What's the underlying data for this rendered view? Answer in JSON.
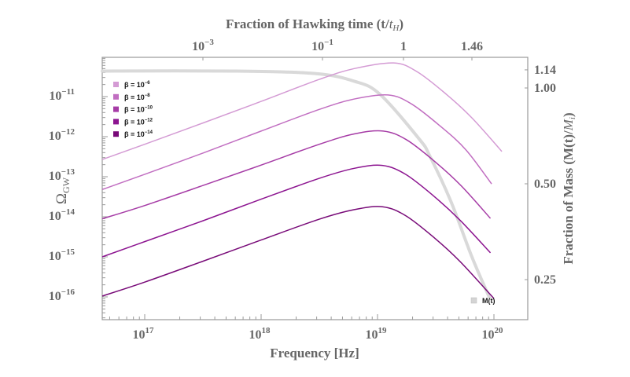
{
  "chart_data": {
    "type": "line",
    "xlabel": "Frequency [Hz]",
    "ylabel": "Ω_GW",
    "ylabel_main": "Ω",
    "ylabel_sub": "GW",
    "top_xlabel": "Fraction of Hawking time (t/t_H)",
    "top_xlabel_main": "Fraction of Hawking time (t/",
    "top_xlabel_italic": "t",
    "top_xlabel_sub": "H",
    "top_xlabel_close": ")",
    "right_ylabel": "Fraction of Mass (M(t)/M_i)",
    "right_ylabel_main": "Fraction of Mass (M(t)/",
    "right_ylabel_italic": "M",
    "right_ylabel_sub": "i",
    "right_ylabel_close": ")",
    "x_scale": "log",
    "y_scale": "log",
    "right_y_scale": "log",
    "xlim": [
      4.32e+16,
      1.95e+20
    ],
    "ylim": [
      2.7e-17,
      9.5e-11
    ],
    "right_ylim": [
      0.18,
      1.24
    ],
    "grid": false,
    "legend_placement": "top-left",
    "x_ticks": [
      {
        "label": "10",
        "exp": "17",
        "value": 1e+17
      },
      {
        "label": "10",
        "exp": "18",
        "value": 1e+18
      },
      {
        "label": "10",
        "exp": "19",
        "value": 1e+19
      },
      {
        "label": "10",
        "exp": "20",
        "value": 1e+20
      }
    ],
    "y_ticks": [
      {
        "label": "10",
        "exp": "−11",
        "value": 1e-11
      },
      {
        "label": "10",
        "exp": "−12",
        "value": 1e-12
      },
      {
        "label": "10",
        "exp": "−13",
        "value": 1e-13
      },
      {
        "label": "10",
        "exp": "−14",
        "value": 1e-14
      },
      {
        "label": "10",
        "exp": "−15",
        "value": 1e-15
      },
      {
        "label": "10",
        "exp": "−16",
        "value": 1e-16
      }
    ],
    "top_x_ticks": [
      {
        "label": "10",
        "exp": "−3"
      },
      {
        "label": "10",
        "exp": "−1"
      },
      {
        "label": "1",
        "exp": ""
      },
      {
        "label": "1.46",
        "exp": ""
      }
    ],
    "right_y_ticks": [
      {
        "label": "1.14",
        "value": 1.14
      },
      {
        "label": "1.00",
        "value": 1.0
      },
      {
        "label": "0.50",
        "value": 0.5
      },
      {
        "label": "0.25",
        "value": 0.25
      }
    ],
    "series": [
      {
        "name": "β = 10^-6",
        "legend_base": "β = 10",
        "legend_exp": "−6",
        "color": "#d49bd4",
        "x": [
          4.32e+16,
          1e+17,
          3.16e+17,
          1e+18,
          3.16e+18,
          6.31e+18,
          1.38e+19,
          2.19e+19,
          3.89e+19,
          6.46e+19,
          1.17e+20
        ],
        "y": [
          2.69e-13,
          6.46e-13,
          2.19e-12,
          7.59e-12,
          2.69e-11,
          5.01e-11,
          6.92e-11,
          4.17e-11,
          1.15e-11,
          2.95e-12,
          4.27e-13
        ]
      },
      {
        "name": "β = 10^-8",
        "legend_base": "β = 10",
        "legend_exp": "−8",
        "color": "#c16ec1",
        "x": [
          4.32e+16,
          1e+17,
          3.16e+17,
          1e+18,
          3.16e+18,
          6.31e+18,
          1.23e+19,
          1.95e+19,
          3.47e+19,
          5.75e+19,
          9.55e+19
        ],
        "y": [
          4.79e-14,
          1.15e-13,
          3.89e-13,
          1.38e-12,
          4.79e-12,
          8.71e-12,
          1.1e-11,
          6.61e-12,
          1.82e-12,
          4.68e-13,
          6.61e-14
        ]
      },
      {
        "name": "β = 10^-10",
        "legend_base": "β = 10",
        "legend_exp": "−10",
        "color": "#a63ca6",
        "x": [
          4.32e+16,
          1e+17,
          3.16e+17,
          1e+18,
          3.16e+18,
          6.31e+18,
          1.12e+19,
          1.78e+19,
          3.16e+19,
          5.25e+19,
          9.33e+19
        ],
        "y": [
          8.91e-15,
          1.91e-14,
          6.03e-14,
          1.95e-13,
          6.46e-13,
          1.17e-12,
          1.38e-12,
          8.32e-13,
          2.29e-13,
          5.89e-14,
          9.12e-15
        ]
      },
      {
        "name": "β = 10^-12",
        "legend_base": "β = 10",
        "legend_exp": "−12",
        "color": "#8c1490",
        "x": [
          4.32e+16,
          1e+17,
          3.16e+17,
          1e+18,
          3.16e+18,
          6.31e+18,
          1.1e+19,
          1.74e+19,
          3.09e+19,
          5.13e+19,
          9.33e+19
        ],
        "y": [
          1e-15,
          2.4e-15,
          7.94e-15,
          2.75e-14,
          9.12e-14,
          1.62e-13,
          1.91e-13,
          1.15e-13,
          3.16e-14,
          8.13e-15,
          1.26e-15
        ]
      },
      {
        "name": "β = 10^-14",
        "legend_base": "β = 10",
        "legend_exp": "−14",
        "color": "#780a78",
        "x": [
          4.32e+16,
          1e+17,
          3.16e+17,
          1e+18,
          3.16e+18,
          6.31e+18,
          1.1e+19,
          1.74e+19,
          3.09e+19,
          5.13e+19,
          1e+20
        ],
        "y": [
          1.05e-16,
          2.34e-16,
          7.76e-16,
          2.63e-15,
          8.71e-15,
          1.51e-14,
          1.78e-14,
          1.07e-14,
          2.95e-15,
          7.59e-16,
          9.12e-17
        ]
      }
    ],
    "mass_series": {
      "name": "M(t)",
      "color": "#d9d9d9",
      "x": [
        4.32e+16,
        6e+17,
        2.9e+18,
        6.31e+18,
        1.05e+19,
        2.29e+19,
        2.82e+19,
        4.27e+19,
        6.46e+19,
        9.12e+19
      ],
      "y": [
        1.13,
        1.13,
        1.11,
        1.05,
        0.955,
        0.69,
        0.61,
        0.44,
        0.295,
        0.22
      ]
    }
  }
}
